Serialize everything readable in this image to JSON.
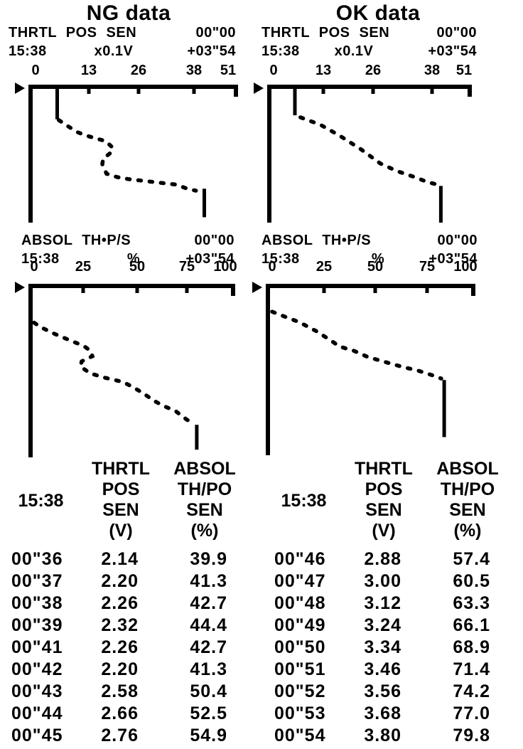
{
  "colors": {
    "ink": "#000000",
    "paper": "#ffffff"
  },
  "columns": [
    {
      "title": "NG data"
    },
    {
      "title": "OK data"
    }
  ],
  "chart_data": [
    {
      "id": "ng_thrtl",
      "column": "NG data",
      "type": "line",
      "orientation": "time-vertical",
      "title": "THRTL POS SEN",
      "time_label": "15:38",
      "unit": "x0.1V",
      "window_start": "00\"00",
      "window_end": "+03\"54",
      "x_ticks": [
        "0",
        "13",
        "26",
        "38",
        "51"
      ],
      "x_range": [
        0,
        51
      ],
      "point_format": "[x_axis_value, time_fraction_from_top]",
      "segments": [
        {
          "style": "solid",
          "points": [
            [
              6.1,
              0.0
            ],
            [
              6.1,
              0.24
            ]
          ]
        },
        {
          "style": "dashed",
          "points": [
            [
              6.5,
              0.245
            ],
            [
              8.9,
              0.29
            ],
            [
              11.5,
              0.335
            ],
            [
              13.9,
              0.36
            ],
            [
              16.3,
              0.38
            ],
            [
              18.9,
              0.4
            ],
            [
              20.8,
              0.45
            ],
            [
              20.0,
              0.49
            ],
            [
              18.2,
              0.53
            ],
            [
              18.0,
              0.57
            ],
            [
              19.1,
              0.64
            ],
            [
              21.9,
              0.665
            ],
            [
              25.0,
              0.68
            ],
            [
              28.2,
              0.69
            ],
            [
              31.2,
              0.7
            ],
            [
              34.3,
              0.71
            ],
            [
              37.5,
              0.72
            ],
            [
              40.4,
              0.75
            ],
            [
              42.7,
              0.765
            ]
          ]
        },
        {
          "style": "solid",
          "points": [
            [
              44.9,
              0.75
            ],
            [
              44.9,
              0.96
            ]
          ]
        }
      ]
    },
    {
      "id": "ok_thrtl",
      "column": "OK data",
      "type": "line",
      "orientation": "time-vertical",
      "title": "THRTL POS SEN",
      "time_label": "15:38",
      "unit": "x0.1V",
      "window_start": "00\"00",
      "window_end": "+03\"54",
      "x_ticks": [
        "0",
        "13",
        "26",
        "38",
        "51"
      ],
      "x_range": [
        0,
        51
      ],
      "point_format": "[x_axis_value, time_fraction_from_top]",
      "segments": [
        {
          "style": "solid",
          "points": [
            [
              5.7,
              0.0
            ],
            [
              5.7,
              0.21
            ]
          ]
        },
        {
          "style": "dashed",
          "points": [
            [
              7.2,
              0.225
            ],
            [
              12.6,
              0.28
            ],
            [
              17.7,
              0.36
            ],
            [
              23.4,
              0.46
            ],
            [
              28.6,
              0.565
            ],
            [
              33.0,
              0.62
            ],
            [
              37.3,
              0.66
            ],
            [
              41.1,
              0.7
            ],
            [
              43.8,
              0.72
            ]
          ]
        },
        {
          "style": "solid",
          "points": [
            [
              44.8,
              0.73
            ],
            [
              44.8,
              1.0
            ]
          ]
        }
      ]
    },
    {
      "id": "ng_absol",
      "column": "NG data",
      "type": "line",
      "orientation": "time-vertical",
      "title": "ABSOL TH•P/S",
      "time_label": "15:38",
      "unit": "%",
      "window_start": "00\"00",
      "window_end": "+03\"54",
      "x_ticks": [
        "0",
        "25",
        "50",
        "75",
        "100"
      ],
      "x_range": [
        0,
        100
      ],
      "point_format": "[x_axis_value, time_fraction_from_top]",
      "segments": [
        {
          "style": "dashed",
          "points": [
            [
              0,
              0.214
            ],
            [
              3.3,
              0.24
            ],
            [
              10.8,
              0.28
            ],
            [
              19.3,
              0.32
            ],
            [
              26.0,
              0.35
            ],
            [
              29.7,
              0.38
            ],
            [
              30.5,
              0.41
            ],
            [
              24.9,
              0.44
            ],
            [
              24.2,
              0.47
            ],
            [
              29.4,
              0.51
            ],
            [
              36.8,
              0.535
            ],
            [
              46.5,
              0.56
            ],
            [
              51.7,
              0.59
            ],
            [
              57.6,
              0.63
            ],
            [
              62.8,
              0.67
            ],
            [
              67.7,
              0.7
            ],
            [
              74.0,
              0.73
            ],
            [
              79.9,
              0.78
            ],
            [
              83.3,
              0.8
            ]
          ]
        },
        {
          "style": "solid",
          "points": [
            [
              85.1,
              0.81
            ],
            [
              85.1,
              0.955
            ]
          ]
        }
      ]
    },
    {
      "id": "ok_absol",
      "column": "OK data",
      "type": "line",
      "orientation": "time-vertical",
      "title": "ABSOL TH•P/S",
      "time_label": "15:38",
      "unit": "%",
      "window_start": "00\"00",
      "window_end": "+03\"54",
      "x_ticks": [
        "0",
        "25",
        "50",
        "75",
        "100"
      ],
      "x_range": [
        0,
        100
      ],
      "point_format": "[x_axis_value, time_fraction_from_top]",
      "segments": [
        {
          "style": "dashed",
          "points": [
            [
              0,
              0.152
            ],
            [
              5.5,
              0.177
            ],
            [
              14.0,
              0.214
            ],
            [
              22.8,
              0.267
            ],
            [
              30.1,
              0.32
            ],
            [
              34.9,
              0.358
            ],
            [
              42.3,
              0.383
            ],
            [
              49.6,
              0.42
            ],
            [
              59.6,
              0.453
            ],
            [
              68.0,
              0.48
            ],
            [
              75.4,
              0.5
            ],
            [
              82.7,
              0.527
            ],
            [
              87.5,
              0.547
            ]
          ]
        },
        {
          "style": "solid",
          "points": [
            [
              89.0,
              0.556
            ],
            [
              89.0,
              0.893
            ]
          ]
        }
      ]
    }
  ],
  "tables": [
    {
      "group": "NG data",
      "time_header": "15:38",
      "columns": [
        [
          "THRTL",
          "POS",
          "SEN",
          "(V)"
        ],
        [
          "ABSOL",
          "TH/PO",
          "SEN",
          "(%)"
        ]
      ],
      "rows": [
        [
          "00\"36",
          "2.14",
          "39.9"
        ],
        [
          "00\"37",
          "2.20",
          "41.3"
        ],
        [
          "00\"38",
          "2.26",
          "42.7"
        ],
        [
          "00\"39",
          "2.32",
          "44.4"
        ],
        [
          "00\"41",
          "2.26",
          "42.7"
        ],
        [
          "00\"42",
          "2.20",
          "41.3"
        ],
        [
          "00\"43",
          "2.58",
          "50.4"
        ],
        [
          "00\"44",
          "2.66",
          "52.5"
        ],
        [
          "00\"45",
          "2.76",
          "54.9"
        ]
      ]
    },
    {
      "group": "OK data",
      "time_header": "15:38",
      "columns": [
        [
          "THRTL",
          "POS",
          "SEN",
          "(V)"
        ],
        [
          "ABSOL",
          "TH/PO",
          "SEN",
          "(%)"
        ]
      ],
      "rows": [
        [
          "00\"46",
          "2.88",
          "57.4"
        ],
        [
          "00\"47",
          "3.00",
          "60.5"
        ],
        [
          "00\"48",
          "3.12",
          "63.3"
        ],
        [
          "00\"49",
          "3.24",
          "66.1"
        ],
        [
          "00\"50",
          "3.34",
          "68.9"
        ],
        [
          "00\"51",
          "3.46",
          "71.4"
        ],
        [
          "00\"52",
          "3.56",
          "74.2"
        ],
        [
          "00\"53",
          "3.68",
          "77.0"
        ],
        [
          "00\"54",
          "3.80",
          "79.8"
        ]
      ]
    }
  ]
}
